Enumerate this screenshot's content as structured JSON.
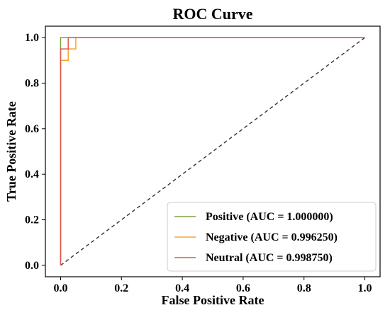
{
  "chart_data": {
    "type": "line",
    "title": "ROC Curve",
    "xlabel": "False Positive Rate",
    "ylabel": "True Positive Rate",
    "xlim": [
      -0.05,
      1.05
    ],
    "ylim": [
      -0.05,
      1.05
    ],
    "xticks": [
      "0.0",
      "0.2",
      "0.4",
      "0.6",
      "0.8",
      "1.0"
    ],
    "yticks": [
      "0.0",
      "0.2",
      "0.4",
      "0.6",
      "0.8",
      "1.0"
    ],
    "grid": false,
    "legend_position": "lower-right",
    "diagonal_color": "#333333",
    "series": [
      {
        "name": "Positive (AUC = 1.000000)",
        "color": "#77a33c",
        "x": [
          0.0,
          0.0,
          0.0,
          1.0
        ],
        "y": [
          0.0,
          0.95,
          1.0,
          1.0
        ]
      },
      {
        "name": "Negative (AUC = 0.996250)",
        "color": "#f5a623",
        "x": [
          0.0,
          0.0,
          0.025,
          0.025,
          0.05,
          0.05,
          1.0
        ],
        "y": [
          0.0,
          0.9,
          0.9,
          0.95,
          0.95,
          1.0,
          1.0
        ]
      },
      {
        "name": "Neutral (AUC = 0.998750)",
        "color": "#e05a4f",
        "x": [
          0.0,
          0.0,
          0.025,
          0.025,
          1.0
        ],
        "y": [
          0.0,
          0.95,
          0.95,
          1.0,
          1.0
        ]
      }
    ]
  }
}
